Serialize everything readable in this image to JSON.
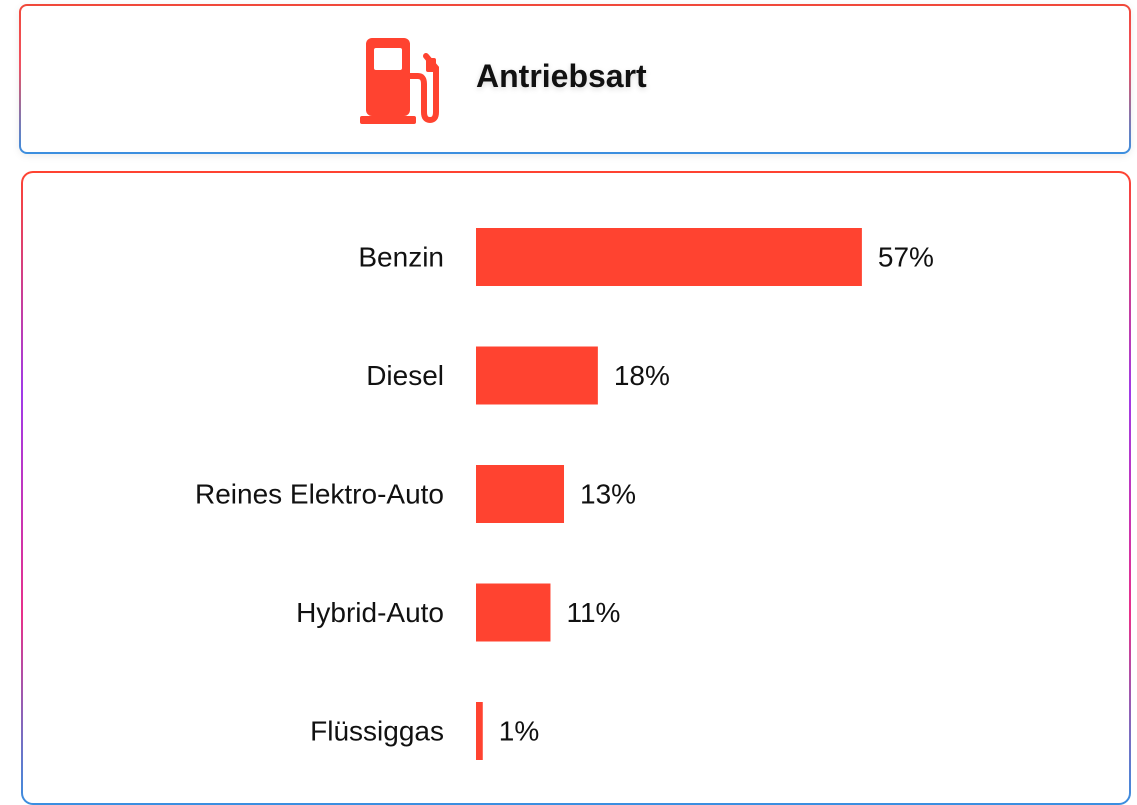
{
  "chart_data": {
    "type": "bar",
    "orientation": "horizontal",
    "title": "Antriebsart",
    "categories": [
      "Benzin",
      "Diesel",
      "Reines Elektro-Auto",
      "Hybrid-Auto",
      "Flüssiggas"
    ],
    "values": [
      57,
      18,
      13,
      11,
      1
    ],
    "value_labels": [
      "57%",
      "18%",
      "13%",
      "11%",
      "1%"
    ],
    "color": "#ff4330"
  }
}
